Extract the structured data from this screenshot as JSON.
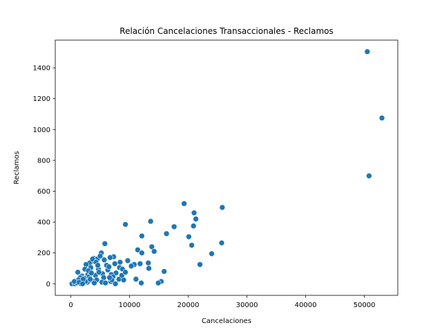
{
  "chart_data": {
    "type": "scatter",
    "title": "Relación Cancelaciones Transaccionales - Reclamos",
    "xlabel": "Cancelaciones",
    "ylabel": "Reclamos",
    "xlim": [
      -2650,
      55700
    ],
    "ylim": [
      -75,
      1580
    ],
    "xticks": [
      0,
      10000,
      20000,
      30000,
      40000,
      50000
    ],
    "xtick_labels": [
      "0",
      "10000",
      "20000",
      "30000",
      "40000",
      "50000"
    ],
    "yticks": [
      0,
      200,
      400,
      600,
      800,
      1000,
      1200,
      1400
    ],
    "ytick_labels": [
      "0",
      "200",
      "400",
      "600",
      "800",
      "1000",
      "1200",
      "1400"
    ],
    "grid": false,
    "legend": "none",
    "marker_color": "#1f77b4",
    "marker_edge": "#ffffff",
    "points": [
      [
        50500,
        1505
      ],
      [
        53000,
        1075
      ],
      [
        50800,
        700
      ],
      [
        19300,
        520
      ],
      [
        25800,
        495
      ],
      [
        21000,
        460
      ],
      [
        21300,
        420
      ],
      [
        13600,
        405
      ],
      [
        9300,
        385
      ],
      [
        20900,
        375
      ],
      [
        17600,
        370
      ],
      [
        16300,
        325
      ],
      [
        12100,
        310
      ],
      [
        20100,
        305
      ],
      [
        25700,
        265
      ],
      [
        5800,
        260
      ],
      [
        20600,
        250
      ],
      [
        13800,
        240
      ],
      [
        11400,
        220
      ],
      [
        14200,
        210
      ],
      [
        12100,
        200
      ],
      [
        5200,
        200
      ],
      [
        24000,
        195
      ],
      [
        7300,
        175
      ],
      [
        6700,
        170
      ],
      [
        3900,
        165
      ],
      [
        4500,
        160
      ],
      [
        5700,
        155
      ],
      [
        9700,
        150
      ],
      [
        4000,
        145
      ],
      [
        11800,
        130
      ],
      [
        13200,
        135
      ],
      [
        22000,
        125
      ],
      [
        3200,
        135
      ],
      [
        7500,
        130
      ],
      [
        10800,
        125
      ],
      [
        2600,
        125
      ],
      [
        10300,
        115
      ],
      [
        8300,
        105
      ],
      [
        3400,
        105
      ],
      [
        13300,
        100
      ],
      [
        2400,
        95
      ],
      [
        6300,
        90
      ],
      [
        4700,
        95
      ],
      [
        8800,
        95
      ],
      [
        15900,
        80
      ],
      [
        1200,
        75
      ],
      [
        7700,
        70
      ],
      [
        5400,
        65
      ],
      [
        2900,
        60
      ],
      [
        6900,
        60
      ],
      [
        4200,
        55
      ],
      [
        1900,
        50
      ],
      [
        7200,
        45
      ],
      [
        3100,
        45
      ],
      [
        5600,
        40
      ],
      [
        1600,
        40
      ],
      [
        8200,
        30
      ],
      [
        11100,
        30
      ],
      [
        2300,
        35
      ],
      [
        9000,
        25
      ],
      [
        4400,
        25
      ],
      [
        1300,
        25
      ],
      [
        3600,
        20
      ],
      [
        15400,
        15
      ],
      [
        6800,
        15
      ],
      [
        5300,
        10
      ],
      [
        2800,
        10
      ],
      [
        900,
        10
      ],
      [
        4000,
        5
      ],
      [
        300,
        5
      ],
      [
        12000,
        5
      ],
      [
        14900,
        5
      ],
      [
        7600,
        0
      ],
      [
        1700,
        0
      ],
      [
        200,
        0
      ],
      [
        700,
        0
      ],
      [
        2500,
        15
      ],
      [
        3300,
        30
      ],
      [
        4800,
        75
      ],
      [
        6100,
        120
      ],
      [
        8700,
        55
      ],
      [
        3700,
        160
      ],
      [
        5000,
        180
      ],
      [
        6500,
        110
      ],
      [
        4300,
        140
      ],
      [
        2100,
        30
      ],
      [
        1000,
        5
      ],
      [
        600,
        15
      ],
      [
        3000,
        85
      ],
      [
        5900,
        5
      ],
      [
        7000,
        25
      ],
      [
        1400,
        10
      ],
      [
        2000,
        0
      ],
      [
        9300,
        75
      ],
      [
        8400,
        140
      ],
      [
        6600,
        40
      ],
      [
        4600,
        120
      ],
      [
        3500,
        70
      ]
    ]
  }
}
